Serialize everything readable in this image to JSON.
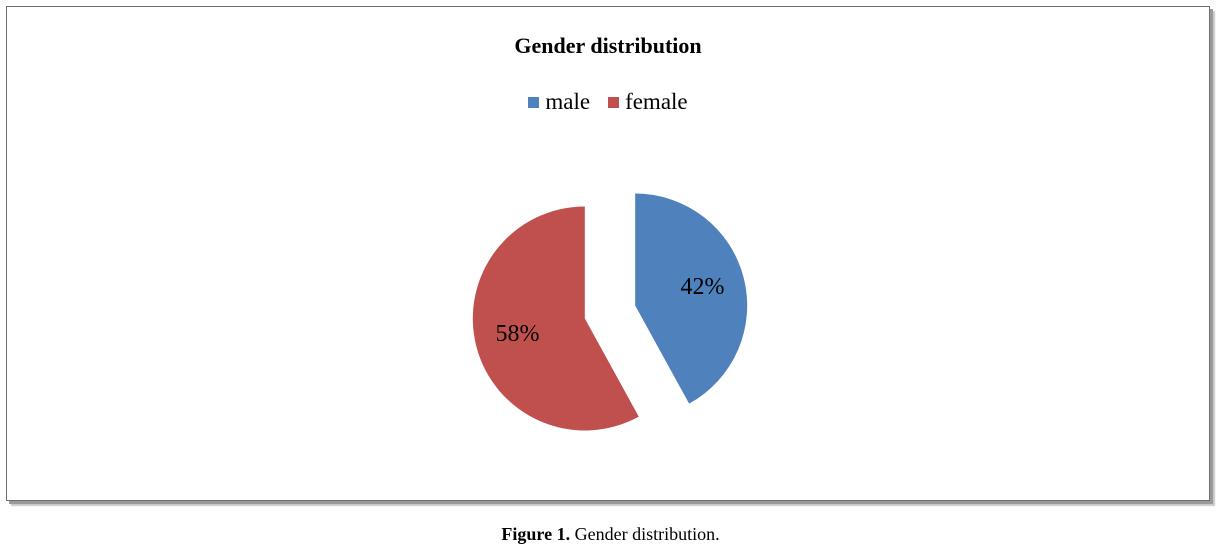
{
  "chart_data": {
    "type": "pie",
    "title": "Gender distribution",
    "categories": [
      "male",
      "female"
    ],
    "values": [
      42,
      58
    ],
    "labels": [
      "42%",
      "58%"
    ],
    "colors": [
      "#4f81bd",
      "#c0504d"
    ],
    "legend_position": "top"
  },
  "caption": {
    "prefix": "Figure 1.",
    "text": " Gender distribution."
  }
}
